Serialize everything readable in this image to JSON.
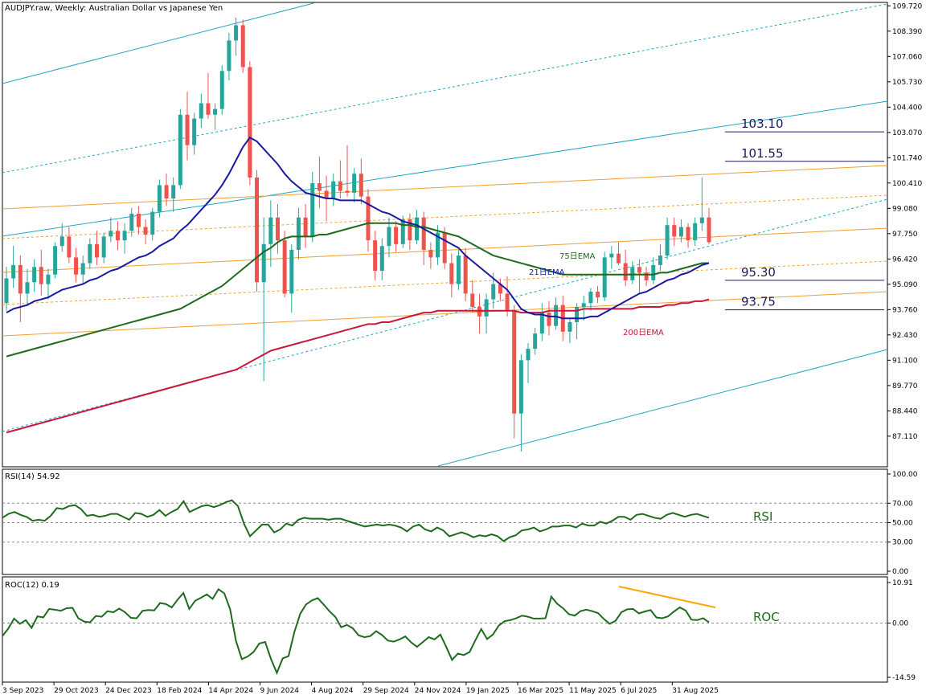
{
  "colors": {
    "bull": "#26a69a",
    "bear": "#ef5350",
    "ema21": "#1a1aa0",
    "ema75": "#1e6b1e",
    "ema200": "#c8173a",
    "channel_blue": "#20a8c0",
    "channel_orange": "#f0a030",
    "indicator": "#1e6b1e",
    "divergence": "#ffa500",
    "fib_line": "#1a1a60"
  },
  "chart_data": [
    {
      "type": "candlestick",
      "title": "AUDJPY.raw, Weekly:  Australian Dollar vs Japanese Yen",
      "ylim": [
        85.5,
        109.9
      ],
      "y_ticks": [
        "109.720",
        "108.390",
        "107.060",
        "105.730",
        "104.400",
        "103.070",
        "101.740",
        "100.410",
        "99.080",
        "97.750",
        "96.420",
        "95.090",
        "93.760",
        "92.430",
        "91.100",
        "89.770",
        "88.440",
        "87.110"
      ],
      "x_ticks": [
        "3 Sep 2023",
        "29 Oct 2023",
        "24 Dec 2023",
        "18 Feb 2024",
        "14 Apr 2024",
        "9 Jun 2024",
        "4 Aug 2024",
        "29 Sep 2024",
        "24 Nov 2024",
        "19 Jan 2025",
        "16 Mar 2025",
        "11 May 2025",
        "6 Jul 2025",
        "31 Aug 2025"
      ],
      "ohlc": [
        [
          94.1,
          96.0,
          93.7,
          95.4
        ],
        [
          95.4,
          97.1,
          94.9,
          96.1
        ],
        [
          96.1,
          96.6,
          93.1,
          94.6
        ],
        [
          94.6,
          95.9,
          94.0,
          95.2
        ],
        [
          95.2,
          96.4,
          94.7,
          96.0
        ],
        [
          96.0,
          96.9,
          94.5,
          95.1
        ],
        [
          95.1,
          95.9,
          94.3,
          95.6
        ],
        [
          95.6,
          97.3,
          95.4,
          97.1
        ],
        [
          97.1,
          98.3,
          96.8,
          97.6
        ],
        [
          97.6,
          98.1,
          96.2,
          96.5
        ],
        [
          96.5,
          97.0,
          95.2,
          95.6
        ],
        [
          95.6,
          96.6,
          95.1,
          96.2
        ],
        [
          96.2,
          97.5,
          95.9,
          97.2
        ],
        [
          97.2,
          97.9,
          96.1,
          96.5
        ],
        [
          96.5,
          97.8,
          96.2,
          97.6
        ],
        [
          97.6,
          98.6,
          97.3,
          97.9
        ],
        [
          97.9,
          98.4,
          96.9,
          97.4
        ],
        [
          97.4,
          98.3,
          96.7,
          97.9
        ],
        [
          97.9,
          99.1,
          97.6,
          98.8
        ],
        [
          98.8,
          99.2,
          97.7,
          98.1
        ],
        [
          98.1,
          98.5,
          97.2,
          97.7
        ],
        [
          97.7,
          99.1,
          97.4,
          98.9
        ],
        [
          98.9,
          100.6,
          98.6,
          100.3
        ],
        [
          100.3,
          100.9,
          99.2,
          99.6
        ],
        [
          99.6,
          100.7,
          98.9,
          100.3
        ],
        [
          100.3,
          104.3,
          100.1,
          104.0
        ],
        [
          104.0,
          105.2,
          101.6,
          102.4
        ],
        [
          102.4,
          104.1,
          101.9,
          103.8
        ],
        [
          103.8,
          105.1,
          103.3,
          104.6
        ],
        [
          104.6,
          106.2,
          103.8,
          104.0
        ],
        [
          104.0,
          104.6,
          103.2,
          104.3
        ],
        [
          104.3,
          106.6,
          104.0,
          106.3
        ],
        [
          106.3,
          108.3,
          105.8,
          107.9
        ],
        [
          107.9,
          109.1,
          107.1,
          108.7
        ],
        [
          108.7,
          109.0,
          106.2,
          106.5
        ],
        [
          106.5,
          106.8,
          100.3,
          100.7
        ],
        [
          100.7,
          101.1,
          94.7,
          95.2
        ],
        [
          95.2,
          98.6,
          90.0,
          97.2
        ],
        [
          97.2,
          99.5,
          96.0,
          98.6
        ],
        [
          98.6,
          99.3,
          96.7,
          97.4
        ],
        [
          97.4,
          97.9,
          94.4,
          94.6
        ],
        [
          94.6,
          97.2,
          93.6,
          96.9
        ],
        [
          96.9,
          99.1,
          96.4,
          98.6
        ],
        [
          98.6,
          99.3,
          97.0,
          97.6
        ],
        [
          97.6,
          101.0,
          97.3,
          100.4
        ],
        [
          100.4,
          101.8,
          99.1,
          100.0
        ],
        [
          100.0,
          100.8,
          98.4,
          99.6
        ],
        [
          99.6,
          100.9,
          99.2,
          100.5
        ],
        [
          100.5,
          101.6,
          99.6,
          100.0
        ],
        [
          100.0,
          102.4,
          99.7,
          99.9
        ],
        [
          99.9,
          101.2,
          99.4,
          100.9
        ],
        [
          100.9,
          101.7,
          99.3,
          99.7
        ],
        [
          99.7,
          100.1,
          96.8,
          97.4
        ],
        [
          97.4,
          97.9,
          95.3,
          95.8
        ],
        [
          95.8,
          97.5,
          95.3,
          97.1
        ],
        [
          97.1,
          98.6,
          96.5,
          98.1
        ],
        [
          98.1,
          98.4,
          96.8,
          97.2
        ],
        [
          97.2,
          98.7,
          97.0,
          98.5
        ],
        [
          98.5,
          98.8,
          96.9,
          97.4
        ],
        [
          97.4,
          99.0,
          97.2,
          98.6
        ],
        [
          98.6,
          98.9,
          96.1,
          96.9
        ],
        [
          96.9,
          97.3,
          95.9,
          96.5
        ],
        [
          96.5,
          98.2,
          96.1,
          97.8
        ],
        [
          97.8,
          98.1,
          95.9,
          96.2
        ],
        [
          96.2,
          96.7,
          94.4,
          95.1
        ],
        [
          95.1,
          96.9,
          94.8,
          96.6
        ],
        [
          96.6,
          97.0,
          94.2,
          94.6
        ],
        [
          94.6,
          95.3,
          93.6,
          93.9
        ],
        [
          93.9,
          94.6,
          92.5,
          93.4
        ],
        [
          93.4,
          94.6,
          92.5,
          94.3
        ],
        [
          94.3,
          95.7,
          93.8,
          95.1
        ],
        [
          95.1,
          95.4,
          94.2,
          94.6
        ],
        [
          94.6,
          95.5,
          93.4,
          93.7
        ],
        [
          93.7,
          94.0,
          87.0,
          88.3
        ],
        [
          88.3,
          91.4,
          86.3,
          91.1
        ],
        [
          91.1,
          92.0,
          89.9,
          91.7
        ],
        [
          91.7,
          92.8,
          91.4,
          92.5
        ],
        [
          92.5,
          94.1,
          92.1,
          93.6
        ],
        [
          93.6,
          94.2,
          92.4,
          92.9
        ],
        [
          92.9,
          94.4,
          92.7,
          94.0
        ],
        [
          94.0,
          94.5,
          92.1,
          92.6
        ],
        [
          92.6,
          93.3,
          92.0,
          93.1
        ],
        [
          93.1,
          94.1,
          92.2,
          93.9
        ],
        [
          93.9,
          94.5,
          93.2,
          94.1
        ],
        [
          94.1,
          94.9,
          93.7,
          94.7
        ],
        [
          94.7,
          95.0,
          94.1,
          94.4
        ],
        [
          94.4,
          96.8,
          94.2,
          96.5
        ],
        [
          96.5,
          97.1,
          95.9,
          96.7
        ],
        [
          96.7,
          97.3,
          96.1,
          96.2
        ],
        [
          96.2,
          96.9,
          95.0,
          95.3
        ],
        [
          95.3,
          96.3,
          95.1,
          96.0
        ],
        [
          96.0,
          96.4,
          94.6,
          95.7
        ],
        [
          95.7,
          96.0,
          95.0,
          95.3
        ],
        [
          95.3,
          96.5,
          95.1,
          96.1
        ],
        [
          96.1,
          97.2,
          95.8,
          96.6
        ],
        [
          96.6,
          98.6,
          96.4,
          98.2
        ],
        [
          98.2,
          98.6,
          97.1,
          97.6
        ],
        [
          97.6,
          98.5,
          97.3,
          98.1
        ],
        [
          98.1,
          98.3,
          97.0,
          97.4
        ],
        [
          97.4,
          98.6,
          97.1,
          98.3
        ],
        [
          98.3,
          100.7,
          97.9,
          98.6
        ],
        [
          98.6,
          99.1,
          97.2,
          97.3
        ]
      ],
      "ema21": [
        93.6,
        93.8,
        93.9,
        94.0,
        94.2,
        94.3,
        94.4,
        94.6,
        94.8,
        94.9,
        95.0,
        95.1,
        95.3,
        95.4,
        95.6,
        95.8,
        95.9,
        96.1,
        96.3,
        96.5,
        96.6,
        96.8,
        97.1,
        97.3,
        97.5,
        97.9,
        98.2,
        98.6,
        99.0,
        99.4,
        99.8,
        100.3,
        100.9,
        101.6,
        102.3,
        102.8,
        102.6,
        102.2,
        101.8,
        101.4,
        100.9,
        100.5,
        100.2,
        99.9,
        99.8,
        99.7,
        99.6,
        99.6,
        99.5,
        99.5,
        99.5,
        99.5,
        99.3,
        99.1,
        98.9,
        98.8,
        98.6,
        98.4,
        98.3,
        98.2,
        98.0,
        97.8,
        97.6,
        97.4,
        97.2,
        97.0,
        96.6,
        96.3,
        96.0,
        95.7,
        95.4,
        95.1,
        94.8,
        94.3,
        93.8,
        93.6,
        93.5,
        93.5,
        93.4,
        93.4,
        93.3,
        93.3,
        93.3,
        93.3,
        93.4,
        93.4,
        93.6,
        93.8,
        94.0,
        94.2,
        94.4,
        94.6,
        94.7,
        94.9,
        95.1,
        95.3,
        95.4,
        95.6,
        95.7,
        95.9,
        96.1,
        96.2
      ],
      "ema75": [
        91.3,
        91.4,
        91.5,
        91.6,
        91.7,
        91.8,
        91.9,
        92.0,
        92.1,
        92.2,
        92.3,
        92.4,
        92.5,
        92.6,
        92.7,
        92.8,
        92.9,
        93.0,
        93.1,
        93.2,
        93.3,
        93.4,
        93.5,
        93.6,
        93.7,
        93.8,
        94.0,
        94.2,
        94.4,
        94.6,
        94.8,
        95.0,
        95.3,
        95.6,
        95.9,
        96.2,
        96.5,
        96.8,
        97.0,
        97.3,
        97.5,
        97.6,
        97.6,
        97.6,
        97.6,
        97.7,
        97.7,
        97.8,
        97.9,
        98.0,
        98.1,
        98.2,
        98.3,
        98.3,
        98.3,
        98.3,
        98.3,
        98.2,
        98.2,
        98.1,
        98.1,
        98.0,
        97.9,
        97.8,
        97.7,
        97.6,
        97.4,
        97.2,
        97.0,
        96.8,
        96.6,
        96.5,
        96.4,
        96.3,
        96.2,
        96.1,
        96.0,
        95.9,
        95.8,
        95.7,
        95.6,
        95.6,
        95.6,
        95.6,
        95.6,
        95.6,
        95.6,
        95.6,
        95.6,
        95.6,
        95.6,
        95.6,
        95.6,
        95.6,
        95.7,
        95.7,
        95.8,
        95.9,
        96.0,
        96.1,
        96.2,
        96.2
      ],
      "ema200": [
        87.3,
        87.4,
        87.5,
        87.6,
        87.7,
        87.8,
        87.9,
        88.0,
        88.1,
        88.2,
        88.3,
        88.4,
        88.5,
        88.6,
        88.7,
        88.8,
        88.9,
        89.0,
        89.1,
        89.2,
        89.3,
        89.4,
        89.5,
        89.6,
        89.7,
        89.8,
        89.9,
        90.0,
        90.1,
        90.2,
        90.3,
        90.4,
        90.5,
        90.6,
        90.8,
        91.0,
        91.2,
        91.4,
        91.6,
        91.7,
        91.8,
        91.9,
        92.0,
        92.1,
        92.2,
        92.3,
        92.4,
        92.5,
        92.6,
        92.7,
        92.8,
        92.9,
        93.0,
        93.0,
        93.1,
        93.1,
        93.2,
        93.3,
        93.4,
        93.5,
        93.6,
        93.6,
        93.7,
        93.7,
        93.7,
        93.7,
        93.7,
        93.7,
        93.7,
        93.7,
        93.7,
        93.7,
        93.7,
        93.7,
        93.6,
        93.6,
        93.6,
        93.6,
        93.7,
        93.7,
        93.7,
        93.7,
        93.7,
        93.8,
        93.8,
        93.8,
        93.8,
        93.8,
        93.8,
        93.8,
        93.8,
        93.9,
        93.9,
        93.9,
        93.9,
        94.0,
        94.0,
        94.1,
        94.1,
        94.2,
        94.2,
        94.3
      ],
      "ema_labels": {
        "ema75": "75日EMA",
        "ema21": "21日EMA",
        "ema200": "200日EMA"
      },
      "fib_levels": [
        "103.10",
        "101.55",
        "95.30",
        "93.75"
      ],
      "fib_values": [
        103.1,
        101.55,
        95.3,
        93.75
      ]
    },
    {
      "type": "line",
      "title": "RSI(14) 54.92",
      "label": "RSI",
      "ylim": [
        0,
        100
      ],
      "y_ticks": [
        "100.00",
        "70.00",
        "50.00",
        "30.00",
        "0.00"
      ],
      "levels": [
        70,
        50,
        30
      ],
      "values": [
        55,
        59,
        61,
        58,
        56,
        52,
        53,
        52,
        57,
        65,
        64,
        67,
        68,
        64,
        57,
        58,
        56,
        57,
        59,
        59,
        56,
        53,
        60,
        59,
        56,
        58,
        63,
        57,
        61,
        64,
        72,
        61,
        64,
        67,
        68,
        66,
        68,
        71,
        73,
        67,
        49,
        36,
        42,
        48,
        48,
        40,
        43,
        49,
        47,
        53,
        55,
        54,
        54,
        54,
        53,
        54,
        54,
        52,
        50,
        48,
        46,
        47,
        48,
        47,
        48,
        47,
        45,
        41,
        46,
        48,
        43,
        41,
        45,
        42,
        36,
        38,
        40,
        38,
        35,
        37,
        36,
        38,
        36,
        31,
        35,
        37,
        42,
        43,
        45,
        41,
        43,
        46,
        46,
        47,
        47,
        45,
        49,
        47,
        47,
        51,
        49,
        52,
        56,
        56,
        53,
        58,
        59,
        57,
        55,
        54,
        58,
        60,
        58,
        56,
        58,
        59,
        57,
        55
      ],
      "values_note": "shape samples",
      "current": "54.92"
    },
    {
      "type": "line",
      "title": "ROC(12) 0.19",
      "label": "ROC",
      "ylim": [
        -14.59,
        10.91
      ],
      "y_ticks": [
        "10.91",
        "0.00",
        "-14.59"
      ],
      "levels": [
        0
      ],
      "values": [
        -3.5,
        -1.5,
        1.2,
        -0.2,
        0.8,
        -1.3,
        1.8,
        1.5,
        3.8,
        3.6,
        3.3,
        4.0,
        4.1,
        1.3,
        0.4,
        0.2,
        1.9,
        1.7,
        3.2,
        2.9,
        3.9,
        2.9,
        1.4,
        1.3,
        3.3,
        3.5,
        3.4,
        5.4,
        5.1,
        4.2,
        6.3,
        8.1,
        3.8,
        6.0,
        6.8,
        7.7,
        6.5,
        9.1,
        8.0,
        3.7,
        -4.8,
        -9.7,
        -9.0,
        -7.8,
        -5.5,
        -5.1,
        -9.7,
        -13.4,
        -9.5,
        -8.9,
        -2.4,
        2.5,
        5.0,
        6.1,
        6.7,
        5.0,
        3.2,
        1.7,
        -1.1,
        -0.5,
        -1.4,
        -3.3,
        -3.8,
        -3.5,
        -2.2,
        -3.2,
        -4.7,
        -5.0,
        -4.4,
        -3.6,
        -5.2,
        -6.4,
        -5.1,
        -3.8,
        -4.4,
        -3.1,
        -6.4,
        -9.9,
        -8.2,
        -8.6,
        -7.8,
        -4.6,
        -1.6,
        -4.3,
        -3.1,
        -0.7,
        0.5,
        0.8,
        1.3,
        2.0,
        1.7,
        1.2,
        1.2,
        1.3,
        7.1,
        5.2,
        4.0,
        2.4,
        2.0,
        3.2,
        3.6,
        3.2,
        2.7,
        1.1,
        -0.2,
        0.6,
        2.9,
        3.7,
        3.8,
        2.6,
        3.1,
        3.5,
        1.5,
        1.3,
        1.8,
        3.1,
        4.2,
        3.4,
        0.9,
        0.8,
        1.3,
        0.19
      ],
      "values_note": "shape samples",
      "current": "0.19"
    }
  ]
}
